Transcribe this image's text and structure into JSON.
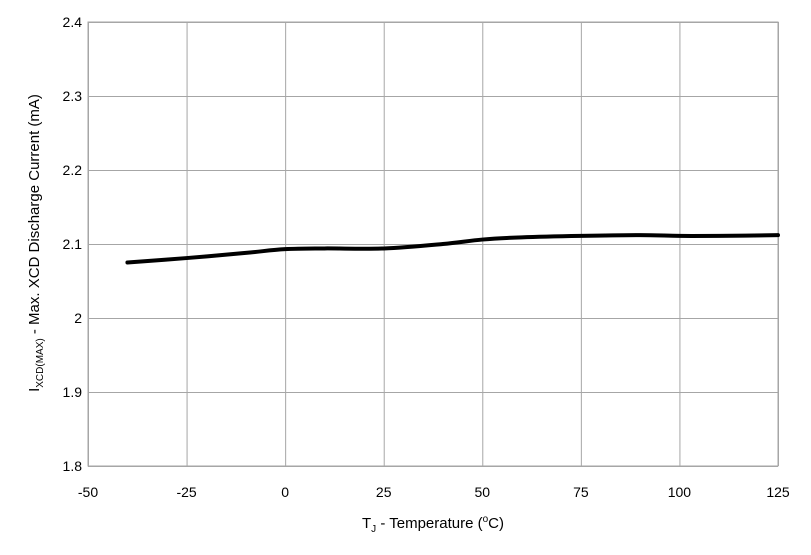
{
  "chart_data": {
    "type": "line",
    "title": "",
    "xlabel": {
      "prefix": "T",
      "subscript": "J",
      "rest": " - Temperature (",
      "superscript": "o",
      "suffix": "C)"
    },
    "ylabel": {
      "prefix": "I",
      "subscript": "XCD(MAX)",
      "rest": " - Max. XCD Discharge Current (mA)"
    },
    "xlim": [
      -50,
      125
    ],
    "ylim": [
      1.8,
      2.4
    ],
    "xticks": [
      -50,
      -25,
      0,
      25,
      50,
      75,
      100,
      125
    ],
    "xtick_labels": [
      "-50",
      "-25",
      "0",
      "25",
      "50",
      "75",
      "100",
      "125"
    ],
    "yticks": [
      1.8,
      1.9,
      2.0,
      2.1,
      2.2,
      2.3,
      2.4
    ],
    "ytick_labels": [
      "1.8",
      "1.9",
      "2",
      "2.1",
      "2.2",
      "2.3",
      "2.4"
    ],
    "grid": true,
    "legend": "none",
    "series": [
      {
        "name": "IXCD(MAX)",
        "color": "#000000",
        "x": [
          -40,
          -25,
          -10,
          0,
          10,
          25,
          40,
          50,
          60,
          75,
          90,
          100,
          110,
          125
        ],
        "y": [
          2.075,
          2.081,
          2.088,
          2.093,
          2.094,
          2.094,
          2.1,
          2.106,
          2.109,
          2.111,
          2.112,
          2.111,
          2.111,
          2.112
        ]
      }
    ]
  }
}
